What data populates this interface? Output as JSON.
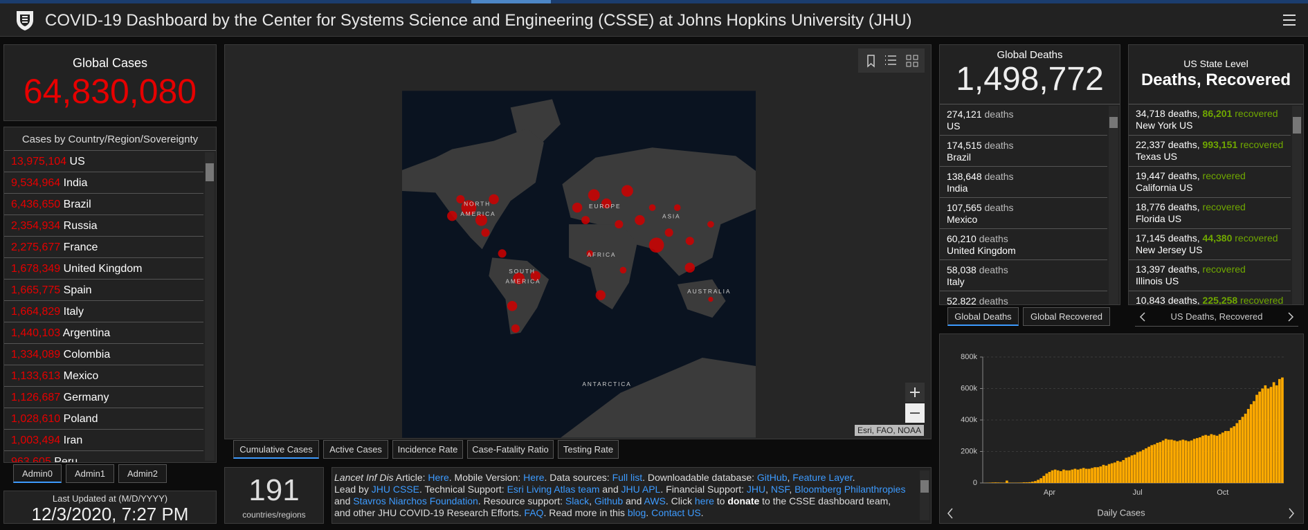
{
  "header": {
    "title": "COVID-19 Dashboard by the Center for Systems Science and Engineering (CSSE) at Johns Hopkins University (JHU)"
  },
  "global_cases": {
    "label": "Global Cases",
    "value": "64,830,080"
  },
  "country_list": {
    "title": "Cases by Country/Region/Sovereignty",
    "rows": [
      {
        "value": "13,975,104",
        "name": "US"
      },
      {
        "value": "9,534,964",
        "name": "India"
      },
      {
        "value": "6,436,650",
        "name": "Brazil"
      },
      {
        "value": "2,354,934",
        "name": "Russia"
      },
      {
        "value": "2,275,677",
        "name": "France"
      },
      {
        "value": "1,678,349",
        "name": "United Kingdom"
      },
      {
        "value": "1,665,775",
        "name": "Spain"
      },
      {
        "value": "1,664,829",
        "name": "Italy"
      },
      {
        "value": "1,440,103",
        "name": "Argentina"
      },
      {
        "value": "1,334,089",
        "name": "Colombia"
      },
      {
        "value": "1,133,613",
        "name": "Mexico"
      },
      {
        "value": "1,126,687",
        "name": "Germany"
      },
      {
        "value": "1,028,610",
        "name": "Poland"
      },
      {
        "value": "1,003,494",
        "name": "Iran"
      },
      {
        "value": "963,605",
        "name": "Peru"
      }
    ]
  },
  "admin_tabs": [
    "Admin0",
    "Admin1",
    "Admin2"
  ],
  "last_updated": {
    "label": "Last Updated at (M/D/YYYY)",
    "value": "12/3/2020, 7:27 PM"
  },
  "map": {
    "labels": [
      "NORTH",
      "AMERICA",
      "EUROPE",
      "ASIA",
      "AFRICA",
      "SOUTH",
      "AMERICA",
      "AUSTRALIA",
      "ANTARCTICA"
    ],
    "tabs": [
      "Cumulative Cases",
      "Active Cases",
      "Incidence Rate",
      "Case-Fatality Ratio",
      "Testing Rate"
    ],
    "attribution": "Esri, FAO, NOAA"
  },
  "count": {
    "value": "191",
    "label": "countries/regions"
  },
  "credits": {
    "lines": [
      [
        {
          "text": "Lancet Inf Dis",
          "kind": "italic"
        },
        {
          "text": " Article: ",
          "kind": "plain"
        },
        {
          "text": "Here",
          "kind": "link"
        },
        {
          "text": ". Mobile Version: ",
          "kind": "plain"
        },
        {
          "text": "Here",
          "kind": "link"
        },
        {
          "text": ". Data sources: ",
          "kind": "plain"
        },
        {
          "text": "Full list",
          "kind": "link"
        },
        {
          "text": ". Downloadable database: ",
          "kind": "plain"
        },
        {
          "text": "GitHub",
          "kind": "link"
        },
        {
          "text": ", ",
          "kind": "plain"
        },
        {
          "text": "Feature Layer",
          "kind": "link"
        },
        {
          "text": ".",
          "kind": "plain"
        }
      ],
      [
        {
          "text": "Lead by ",
          "kind": "plain"
        },
        {
          "text": "JHU CSSE",
          "kind": "link"
        },
        {
          "text": ". Technical Support: ",
          "kind": "plain"
        },
        {
          "text": "Esri Living Atlas team",
          "kind": "link"
        },
        {
          "text": " and ",
          "kind": "plain"
        },
        {
          "text": "JHU APL",
          "kind": "link"
        },
        {
          "text": ". Financial Support: ",
          "kind": "plain"
        },
        {
          "text": "JHU",
          "kind": "link"
        },
        {
          "text": ", ",
          "kind": "plain"
        },
        {
          "text": "NSF",
          "kind": "link"
        },
        {
          "text": ", ",
          "kind": "plain"
        },
        {
          "text": "Bloomberg Philanthropies",
          "kind": "link"
        }
      ],
      [
        {
          "text": "and ",
          "kind": "plain"
        },
        {
          "text": "Stavros Niarchos Foundation",
          "kind": "link"
        },
        {
          "text": ". Resource support: ",
          "kind": "plain"
        },
        {
          "text": "Slack",
          "kind": "link"
        },
        {
          "text": ", ",
          "kind": "plain"
        },
        {
          "text": "Github",
          "kind": "link"
        },
        {
          "text": " and ",
          "kind": "plain"
        },
        {
          "text": "AWS",
          "kind": "link"
        },
        {
          "text": ". Click ",
          "kind": "plain"
        },
        {
          "text": "here",
          "kind": "link"
        },
        {
          "text": " to ",
          "kind": "plain"
        },
        {
          "text": "donate",
          "kind": "bold"
        },
        {
          "text": " to the CSSE dashboard team,",
          "kind": "plain"
        }
      ],
      [
        {
          "text": "and other JHU COVID-19 Research Efforts. ",
          "kind": "plain"
        },
        {
          "text": "FAQ",
          "kind": "link"
        },
        {
          "text": ". Read more in this ",
          "kind": "plain"
        },
        {
          "text": "blog",
          "kind": "link"
        },
        {
          "text": ". ",
          "kind": "plain"
        },
        {
          "text": "Contact US",
          "kind": "link"
        },
        {
          "text": ".",
          "kind": "plain"
        }
      ]
    ]
  },
  "global_deaths": {
    "title": "Global Deaths",
    "value": "1,498,772",
    "unit": "deaths",
    "rows": [
      {
        "deaths": "274,121",
        "place": "US"
      },
      {
        "deaths": "174,515",
        "place": "Brazil"
      },
      {
        "deaths": "138,648",
        "place": "India"
      },
      {
        "deaths": "107,565",
        "place": "Mexico"
      },
      {
        "deaths": "60,210",
        "place": "United Kingdom"
      },
      {
        "deaths": "58,038",
        "place": "Italy"
      },
      {
        "deaths": "52,822",
        "place": null
      }
    ],
    "tabs": [
      "Global Deaths",
      "Global Recovered"
    ]
  },
  "us_state": {
    "title": "US State Level",
    "subtitle": "Deaths, Recovered",
    "deaths_unit": "deaths,",
    "recovered_unit": "recovered",
    "rows": [
      {
        "deaths": "34,718",
        "recovered": "86,201",
        "place": "New York US"
      },
      {
        "deaths": "22,337",
        "recovered": "993,151",
        "place": "Texas US"
      },
      {
        "deaths": "19,447",
        "recovered": null,
        "place": "California US"
      },
      {
        "deaths": "18,776",
        "recovered": null,
        "place": "Florida US"
      },
      {
        "deaths": "17,145",
        "recovered": "44,380",
        "place": "New Jersey US"
      },
      {
        "deaths": "13,397",
        "recovered": null,
        "place": "Illinois US"
      },
      {
        "deaths": "10,843",
        "recovered": "225,258",
        "place": null
      }
    ],
    "nav_label": "US Deaths, Recovered"
  },
  "chart_data": {
    "type": "bar",
    "title": "Daily Cases",
    "color": "#ffaa00",
    "categories": [
      null,
      null,
      null,
      null,
      null,
      null,
      null,
      null,
      null,
      null,
      null,
      null,
      null,
      null,
      null,
      null,
      null,
      null,
      null,
      null,
      null,
      null,
      null,
      "Apr",
      null,
      null,
      null,
      null,
      null,
      null,
      null,
      null,
      null,
      null,
      null,
      null,
      null,
      null,
      null,
      null,
      null,
      null,
      null,
      null,
      null,
      null,
      null,
      null,
      null,
      null,
      null,
      null,
      null,
      null,
      "Jul",
      null,
      null,
      null,
      null,
      null,
      null,
      null,
      null,
      null,
      null,
      null,
      null,
      null,
      null,
      null,
      null,
      null,
      null,
      null,
      null,
      null,
      null,
      null,
      null,
      null,
      null,
      null,
      null,
      null,
      "Oct",
      null,
      null,
      null,
      null,
      null,
      null,
      null,
      null,
      null,
      null,
      null,
      null,
      null,
      null,
      null,
      null,
      null,
      null,
      null,
      null,
      null
    ],
    "values": [
      500,
      1000,
      2000,
      3000,
      3500,
      3000,
      2500,
      2000,
      15000,
      2000,
      1500,
      1500,
      2000,
      2500,
      4000,
      4000,
      5000,
      8000,
      12000,
      20000,
      30000,
      45000,
      60000,
      70000,
      80000,
      85000,
      80000,
      75000,
      85000,
      80000,
      80000,
      85000,
      90000,
      85000,
      90000,
      95000,
      90000,
      90000,
      95000,
      100000,
      100000,
      105000,
      115000,
      110000,
      120000,
      125000,
      130000,
      140000,
      135000,
      145000,
      160000,
      165000,
      175000,
      180000,
      195000,
      200000,
      210000,
      220000,
      230000,
      240000,
      245000,
      255000,
      260000,
      270000,
      280000,
      275000,
      275000,
      270000,
      265000,
      270000,
      275000,
      270000,
      265000,
      270000,
      280000,
      285000,
      290000,
      300000,
      305000,
      300000,
      310000,
      305000,
      300000,
      310000,
      320000,
      330000,
      330000,
      350000,
      360000,
      380000,
      400000,
      420000,
      440000,
      470000,
      500000,
      520000,
      560000,
      580000,
      600000,
      620000,
      600000,
      610000,
      640000,
      620000,
      660000,
      670000
    ],
    "ylim": [
      0,
      800000
    ],
    "yticks": [
      0,
      {
        "value": 200000,
        "label": "200k"
      },
      {
        "value": 400000,
        "label": "400k"
      },
      {
        "value": 600000,
        "label": "600k"
      },
      {
        "value": 800000,
        "label": "800k"
      }
    ],
    "grid": true
  }
}
